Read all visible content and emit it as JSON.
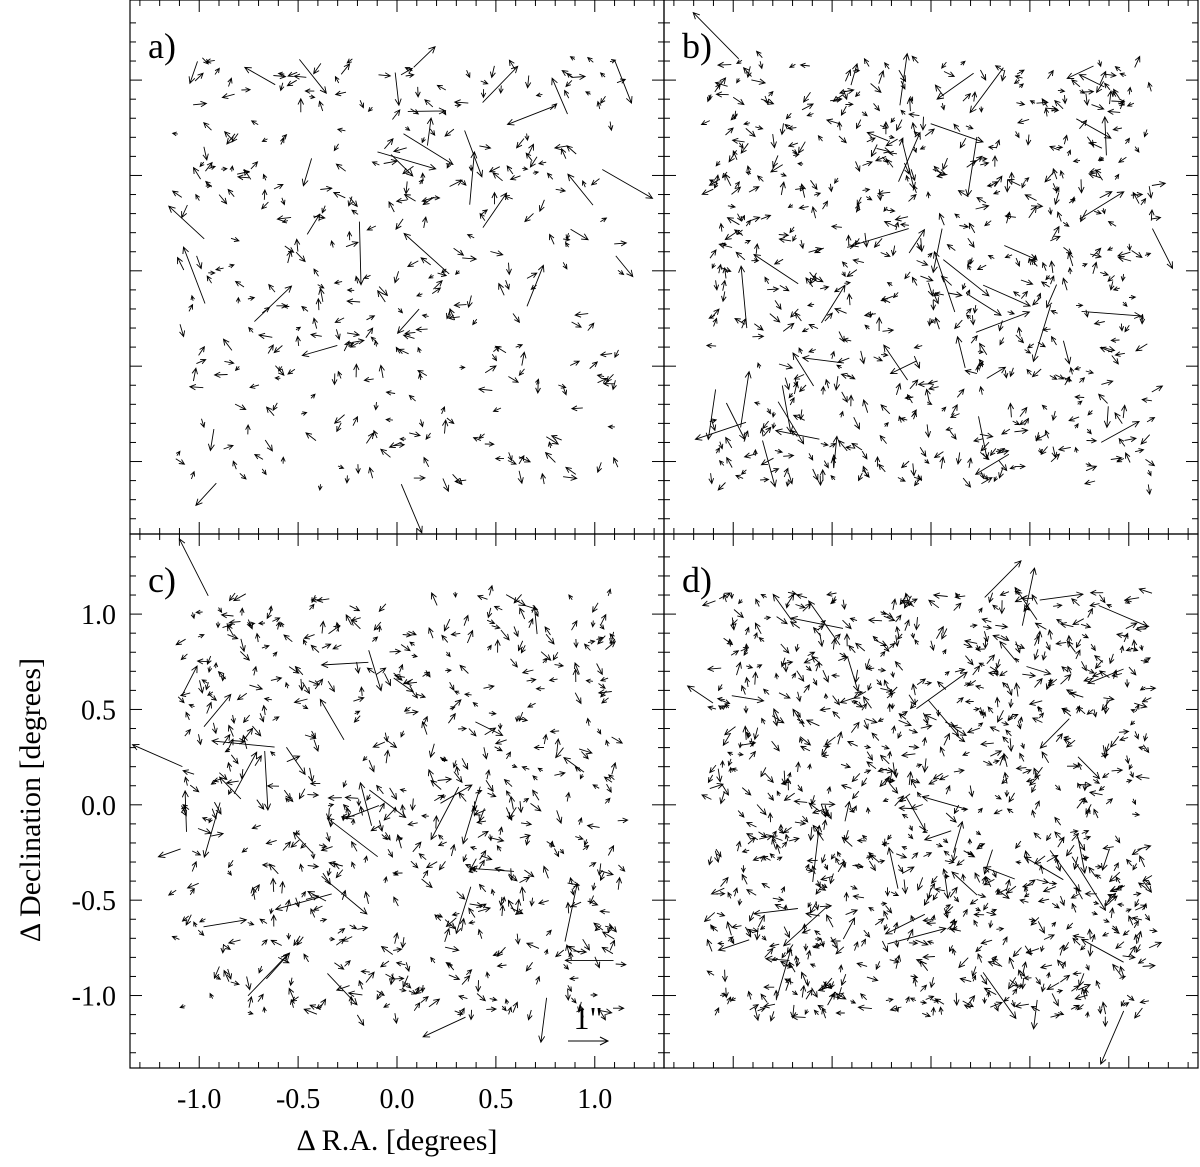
{
  "figure": {
    "x_label": "Δ R.A. [degrees]",
    "y_label": "Δ Declination [degrees]",
    "scale_bar_label": "1\"",
    "scale_bar_arcsec": 1
  },
  "chart_data": [
    {
      "type": "quiver",
      "panel_label": "a)",
      "xlim": [
        -1.35,
        1.35
      ],
      "ylim": [
        -1.38,
        1.42
      ],
      "x_ticks": [
        -1.0,
        -0.5,
        0.0,
        0.5,
        1.0
      ],
      "y_ticks": [
        -1.0,
        -0.5,
        0.0,
        0.5,
        1.0
      ],
      "show_tick_labels_x": false,
      "show_tick_labels_y": false,
      "n_vectors": 400,
      "seed": 11
    },
    {
      "type": "quiver",
      "panel_label": "b)",
      "xlim": [
        -1.35,
        1.35
      ],
      "ylim": [
        -1.38,
        1.42
      ],
      "x_ticks": [
        -1.0,
        -0.5,
        0.0,
        0.5,
        1.0
      ],
      "y_ticks": [
        -1.0,
        -0.5,
        0.0,
        0.5,
        1.0
      ],
      "show_tick_labels_x": false,
      "show_tick_labels_y": false,
      "n_vectors": 700,
      "seed": 23
    },
    {
      "type": "quiver",
      "panel_label": "c)",
      "xlim": [
        -1.35,
        1.35
      ],
      "ylim": [
        -1.38,
        1.42
      ],
      "x_ticks": [
        -1.0,
        -0.5,
        0.0,
        0.5,
        1.0
      ],
      "y_ticks": [
        -1.0,
        -0.5,
        0.0,
        0.5,
        1.0
      ],
      "x_tick_labels": [
        "-1.0",
        "-0.5",
        "0.0",
        "0.5",
        "1.0"
      ],
      "y_tick_labels": [
        "-1.0",
        "-0.5",
        "0.0",
        "0.5",
        "1.0"
      ],
      "show_tick_labels_x": true,
      "show_tick_labels_y": true,
      "n_vectors": 650,
      "seed": 37
    },
    {
      "type": "quiver",
      "panel_label": "d)",
      "xlim": [
        -1.35,
        1.35
      ],
      "ylim": [
        -1.38,
        1.42
      ],
      "x_ticks": [
        -1.0,
        -0.5,
        0.0,
        0.5,
        1.0
      ],
      "y_ticks": [
        -1.0,
        -0.5,
        0.0,
        0.5,
        1.0
      ],
      "show_tick_labels_x": false,
      "show_tick_labels_y": false,
      "n_vectors": 1000,
      "seed": 53
    }
  ]
}
